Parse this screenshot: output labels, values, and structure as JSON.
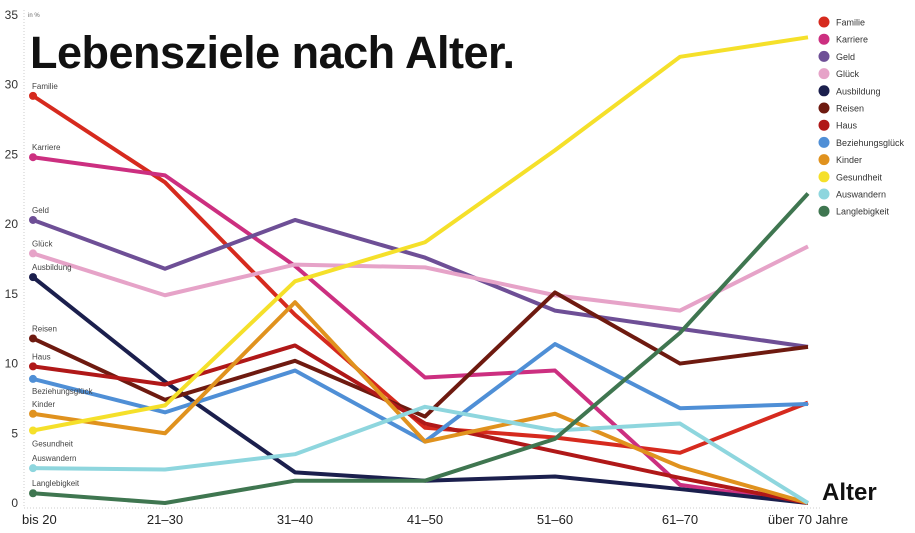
{
  "chart_data": {
    "type": "line",
    "title": "Lebensziele nach Alter.",
    "xlabel": "Alter",
    "ylabel": "in %",
    "ylim": [
      0,
      35
    ],
    "yticks": [
      0,
      5,
      10,
      15,
      20,
      25,
      30,
      35
    ],
    "grid": false,
    "legend": "top-right",
    "categories": [
      "bis 20",
      "21–30",
      "31–40",
      "41–50",
      "51–60",
      "61–70",
      "über 70 Jahre"
    ],
    "series": [
      {
        "name": "Familie",
        "color": "#d62a1e",
        "values": [
          29.2,
          23.0,
          13.5,
          5.4,
          4.7,
          3.6,
          7.2
        ]
      },
      {
        "name": "Karriere",
        "color": "#cc2f80",
        "values": [
          24.8,
          23.5,
          17.0,
          9.0,
          9.5,
          1.3,
          0
        ]
      },
      {
        "name": "Geld",
        "color": "#6e4f96",
        "values": [
          20.3,
          16.8,
          20.3,
          17.6,
          13.8,
          12.5,
          11.2
        ]
      },
      {
        "name": "Glück",
        "color": "#e6a3c8",
        "values": [
          17.9,
          14.9,
          17.1,
          16.9,
          14.9,
          13.8,
          18.4
        ]
      },
      {
        "name": "Ausbildung",
        "color": "#1b1f4d",
        "values": [
          16.2,
          8.7,
          2.2,
          1.6,
          1.9,
          1.0,
          0
        ]
      },
      {
        "name": "Reisen",
        "color": "#6e1a10",
        "values": [
          11.8,
          7.4,
          10.2,
          6.2,
          15.1,
          10.0,
          11.2
        ]
      },
      {
        "name": "Haus",
        "color": "#b01818",
        "values": [
          9.8,
          8.5,
          11.3,
          5.7,
          3.7,
          1.8,
          0
        ]
      },
      {
        "name": "Beziehungsglück",
        "color": "#4f8fd6",
        "values": [
          8.9,
          6.5,
          9.5,
          4.4,
          11.4,
          6.8,
          7.1
        ]
      },
      {
        "name": "Kinder",
        "color": "#e0921e",
        "values": [
          6.4,
          5.0,
          14.4,
          4.4,
          6.4,
          2.6,
          0
        ]
      },
      {
        "name": "Gesundheit",
        "color": "#f5e02a",
        "values": [
          5.2,
          7.0,
          15.9,
          18.7,
          25.3,
          32.0,
          33.4
        ]
      },
      {
        "name": "Auswandern",
        "color": "#8ed6de",
        "values": [
          2.5,
          2.4,
          3.5,
          6.9,
          5.2,
          5.7,
          0
        ]
      },
      {
        "name": "Langlebigkeit",
        "color": "#3f7650",
        "values": [
          0.7,
          0,
          1.6,
          1.6,
          4.6,
          12.2,
          22.2
        ]
      }
    ]
  }
}
